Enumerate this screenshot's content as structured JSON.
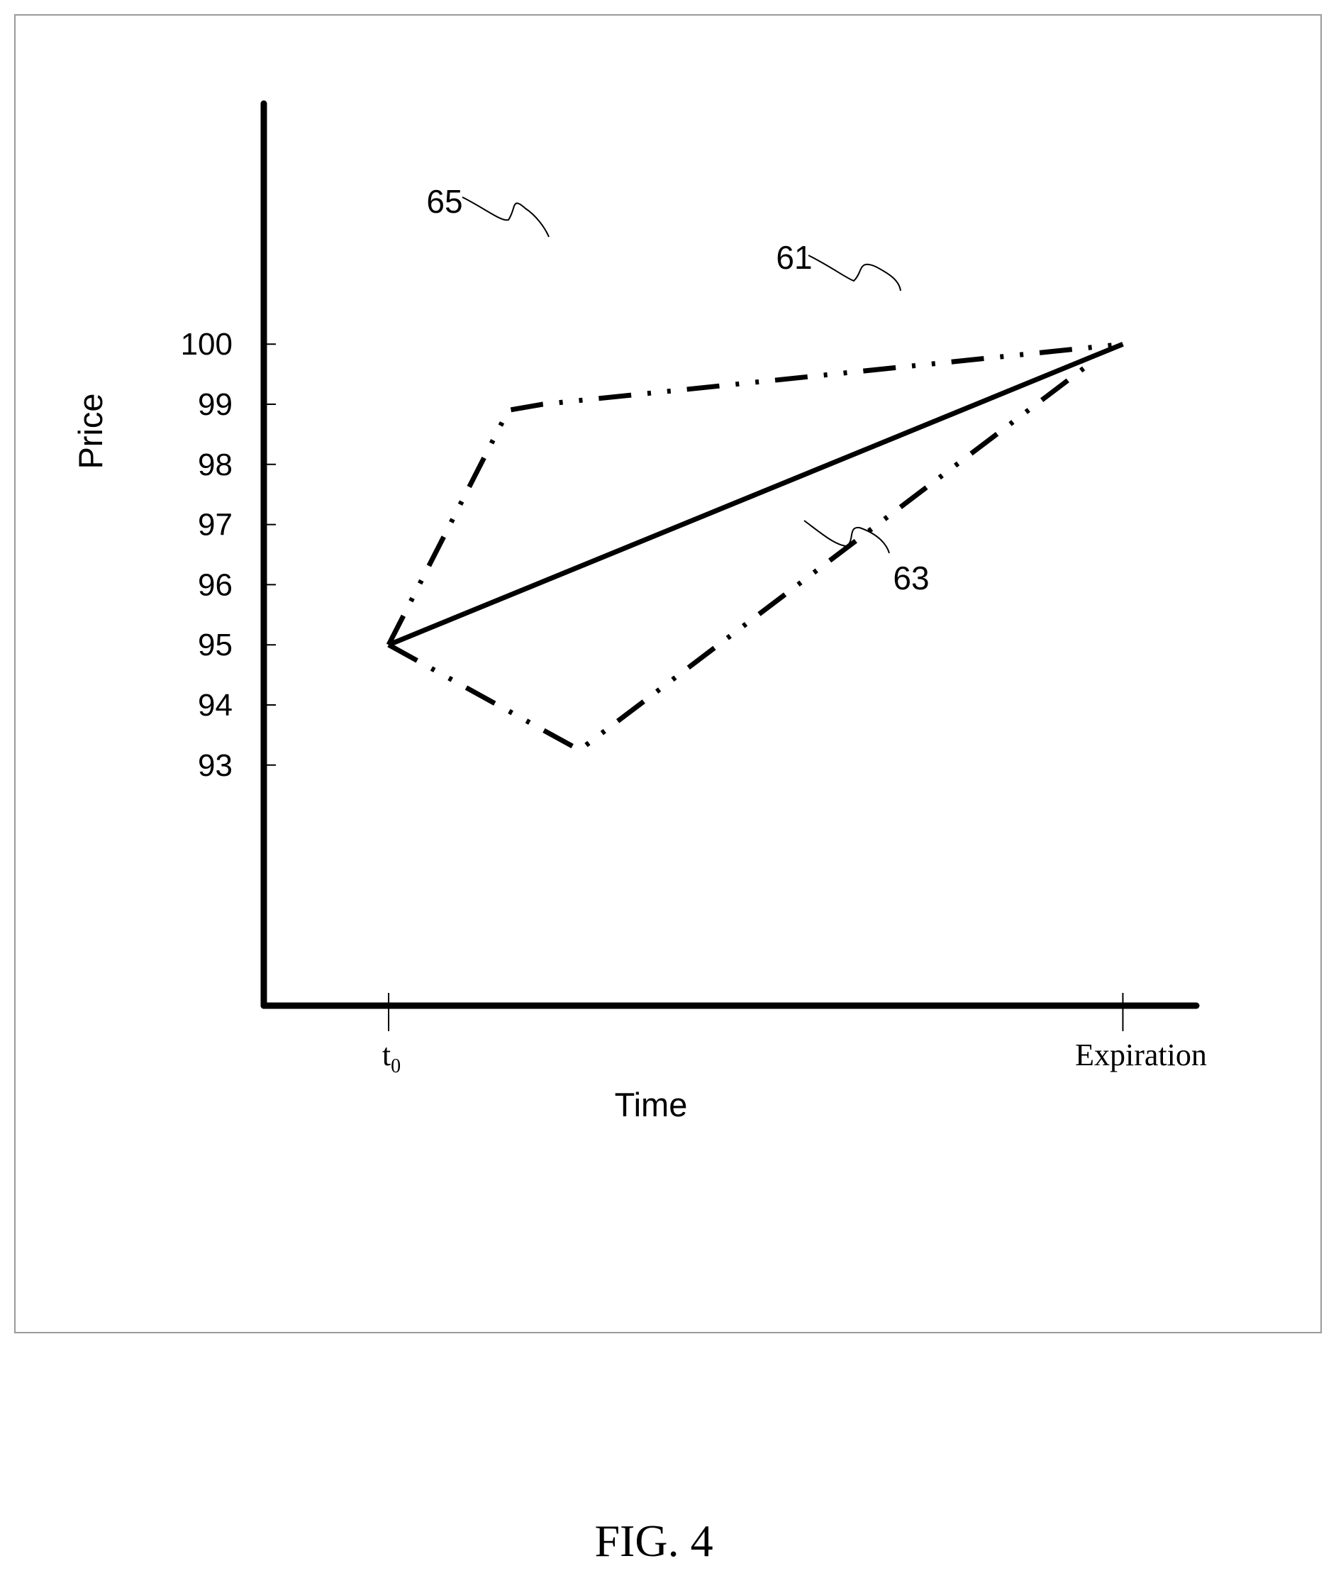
{
  "figure_label": "FIG. 4",
  "chart_data": {
    "type": "line",
    "ylabel": "Price",
    "xlabel": "Time",
    "x_tick_labels": [
      {
        "base": "t",
        "subscript": "0"
      },
      {
        "base": "Expiration",
        "subscript": ""
      }
    ],
    "y_ticks": [
      100,
      99,
      98,
      97,
      96,
      95,
      94,
      93
    ],
    "y_tick_labels": [
      "100",
      "99",
      "98",
      "97",
      "96",
      "95",
      "94",
      "93"
    ],
    "ylim": [
      89,
      104
    ],
    "xlim": [
      -0.17,
      1.1
    ],
    "x_axis_note": "x values are fractions of the interval from t0 (0) to Expiration (1)",
    "grid": false,
    "colors": {
      "ink": "#000000",
      "frame": "#9a9a9a"
    },
    "series": [
      {
        "name": "61",
        "style": "solid",
        "points": [
          [
            0.0,
            95.0
          ],
          [
            1.0,
            100.0
          ]
        ]
      },
      {
        "name": "63",
        "style": "dash-dot-dot",
        "points": [
          [
            0.0,
            95.0
          ],
          [
            0.26,
            93.25
          ],
          [
            0.947,
            99.6
          ]
        ]
      },
      {
        "name": "65",
        "style": "dash-dot-dot",
        "points": [
          [
            0.0,
            95.0
          ],
          [
            0.163,
            98.9
          ],
          [
            0.21,
            99.0
          ],
          [
            1.0,
            100.0
          ]
        ]
      }
    ],
    "reference_labels": [
      "65",
      "61",
      "63"
    ]
  }
}
